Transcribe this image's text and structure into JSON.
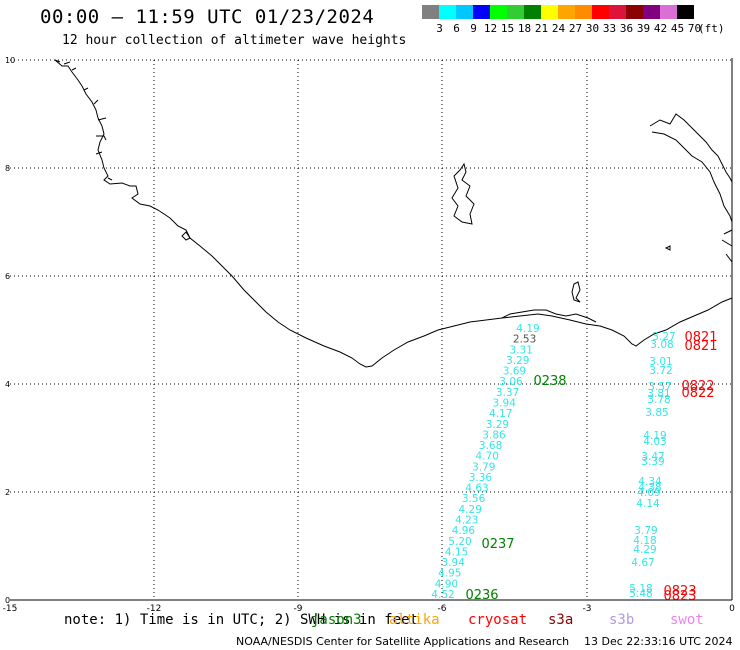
{
  "title": "00:00 – 11:59 UTC 01/23/2024",
  "subtitle": "12 hour collection of altimeter wave heights",
  "legend": {
    "unit": "(ft)",
    "levels": [
      "3",
      "6",
      "9",
      "12",
      "15",
      "18",
      "21",
      "24",
      "27",
      "30",
      "33",
      "36",
      "39",
      "42",
      "45",
      "70"
    ],
    "colors": [
      "#808080",
      "#00ffff",
      "#00c8ff",
      "#0000ff",
      "#00ff00",
      "#32cd32",
      "#008000",
      "#ffff00",
      "#ffa500",
      "#ff8c00",
      "#ff0000",
      "#dc143c",
      "#8b0000",
      "#800080",
      "#da70d6",
      "#000000"
    ],
    "first_color": "#808080",
    "last_color": "#000000"
  },
  "axes": {
    "x_ticks": [
      "-15",
      "-12",
      "-9",
      "-6",
      "-3",
      "0"
    ],
    "y_ticks": [
      "0",
      "2",
      "4",
      "6",
      "8",
      "10"
    ]
  },
  "track1": {
    "color": "#33e6e6",
    "values": [
      "4.19",
      "2.53",
      "3.31",
      "3.29",
      "3.69",
      "3.06",
      "3.37",
      "3.94",
      "4.17",
      "3.29",
      "3.86",
      "3.68",
      "4.70",
      "3.79",
      "3.36",
      "4.63",
      "3.56",
      "4.29",
      "4.23",
      "4.96",
      "5.20",
      "4.15",
      "3.94",
      "4.95",
      "4.90",
      "4.52"
    ],
    "times": [
      "0238",
      "0237",
      "0236"
    ],
    "time_color": "#008000"
  },
  "track2": {
    "color": "#33e6e6",
    "values": [
      "3.27",
      "3.08",
      "3.01",
      "3.72",
      "3.57",
      "3.81",
      "3.78",
      "3.85",
      "4.19",
      "4.03",
      "3.47",
      "3.39",
      "4.34",
      "4.38",
      "4.09",
      "4.14",
      "3.79",
      "4.18",
      "4.29",
      "4.67",
      "5.18",
      "5.48"
    ],
    "times": [
      "0821",
      "0821",
      "0822",
      "0822",
      "0823",
      "0823"
    ],
    "time_color": "#ff0000"
  },
  "note": {
    "prefix": "note: 1) Time is in UTC; 2) SWH is in feet",
    "satellites": [
      {
        "name": "jason3",
        "color": "#008000"
      },
      {
        "name": "altika",
        "color": "#ffa500"
      },
      {
        "name": "cryosat",
        "color": "#ff0000"
      },
      {
        "name": "s3a",
        "color": "#8b0000"
      },
      {
        "name": "s3b",
        "color": "#b19cd9"
      },
      {
        "name": "swot",
        "color": "#ee82ee"
      }
    ]
  },
  "footer": {
    "credit": "NOAA/NESDIS Center for Satellite Applications and Research",
    "timestamp": "13 Dec 22:33:16 UTC 2024"
  }
}
